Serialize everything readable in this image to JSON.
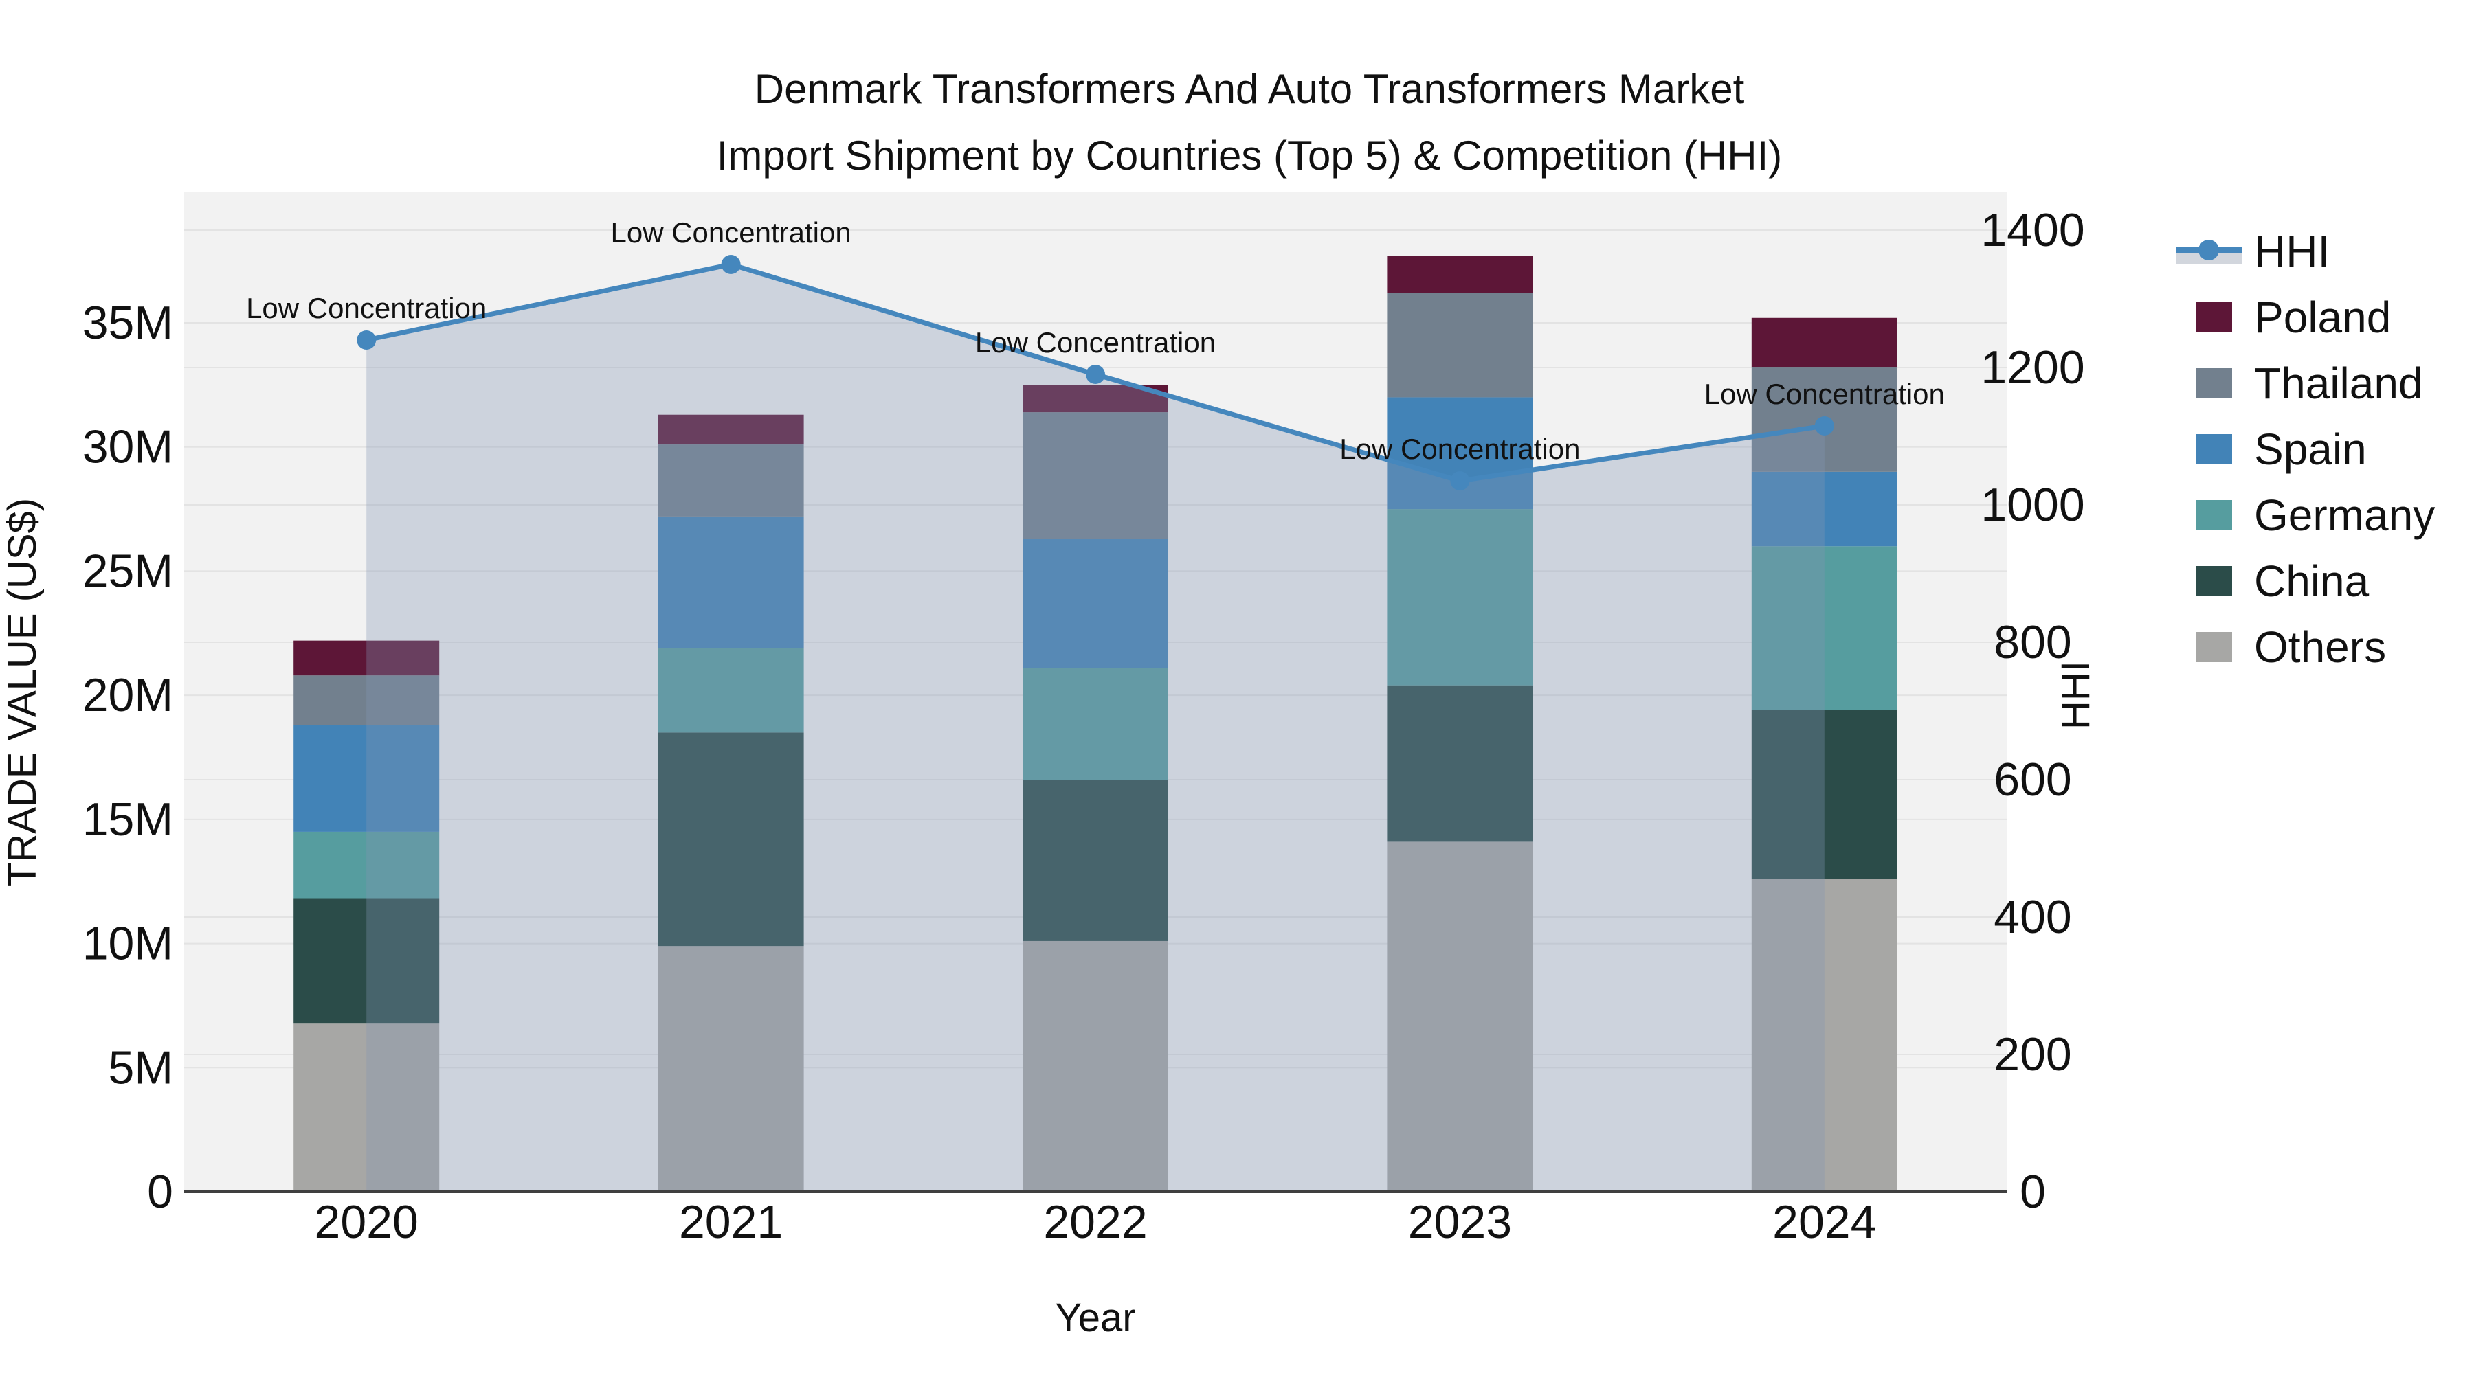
{
  "chart_data": {
    "type": "bar",
    "subtype": "stacked-bars-with-line-overlay",
    "title_line1": "Denmark Transformers And Auto Transformers Market",
    "title_line2": "Import Shipment by Countries (Top 5) & Competition (HHI)",
    "x": {
      "label": "Year",
      "categories": [
        "2020",
        "2021",
        "2022",
        "2023",
        "2024"
      ]
    },
    "y_left": {
      "label": "TRADE VALUE (US$)",
      "tick_values": [
        0,
        5,
        10,
        15,
        20,
        25,
        30,
        35
      ],
      "tick_labels": [
        "0",
        "5M",
        "10M",
        "15M",
        "20M",
        "25M",
        "30M",
        "35M"
      ],
      "units": "millions USD",
      "range": [
        0,
        38.8
      ]
    },
    "y_right": {
      "label": "HHI",
      "tick_values": [
        0,
        200,
        400,
        600,
        800,
        1000,
        1200,
        1400
      ],
      "tick_labels": [
        "0",
        "200",
        "400",
        "600",
        "800",
        "1000",
        "1200",
        "1400"
      ],
      "range": [
        0,
        1400
      ]
    },
    "series": [
      {
        "name": "Others",
        "color": "#a7a7a5",
        "values": [
          6.8,
          9.9,
          10.1,
          14.1,
          12.6
        ]
      },
      {
        "name": "China",
        "color": "#2b4c49",
        "values": [
          5.0,
          8.6,
          6.5,
          6.3,
          6.8
        ]
      },
      {
        "name": "Germany",
        "color": "#569d9f",
        "values": [
          2.7,
          3.4,
          4.5,
          7.1,
          6.6
        ]
      },
      {
        "name": "Spain",
        "color": "#4283b7",
        "values": [
          4.3,
          5.3,
          5.2,
          4.5,
          3.0
        ]
      },
      {
        "name": "Thailand",
        "color": "#72808e",
        "values": [
          2.0,
          2.9,
          5.1,
          4.2,
          4.2
        ]
      },
      {
        "name": "Poland",
        "color": "#5d1637",
        "values": [
          1.4,
          1.2,
          1.1,
          1.5,
          2.0
        ]
      }
    ],
    "totals": [
      22.2,
      31.3,
      32.5,
      37.7,
      35.2
    ],
    "hhi_series": {
      "name": "HHI",
      "line_color": "#4587bd",
      "area_fill_color": "rgba(130,150,180,0.33)",
      "legend_band_color": "#d2d6dd",
      "values": [
        1240,
        1350,
        1190,
        1035,
        1115
      ],
      "annotation_text": "Low Concentration",
      "annotations": [
        "Low Concentration",
        "Low Concentration",
        "Low Concentration",
        "Low Concentration",
        "Low Concentration"
      ]
    },
    "legend": {
      "position": "right",
      "items": [
        "HHI",
        "Poland",
        "Thailand",
        "Spain",
        "Germany",
        "China",
        "Others"
      ]
    },
    "style": {
      "plot_bg": "#f2f2f2",
      "grid_color": "#e3e3e3",
      "axis_line_color": "#3f3f3f",
      "text_color": "#111111"
    }
  }
}
